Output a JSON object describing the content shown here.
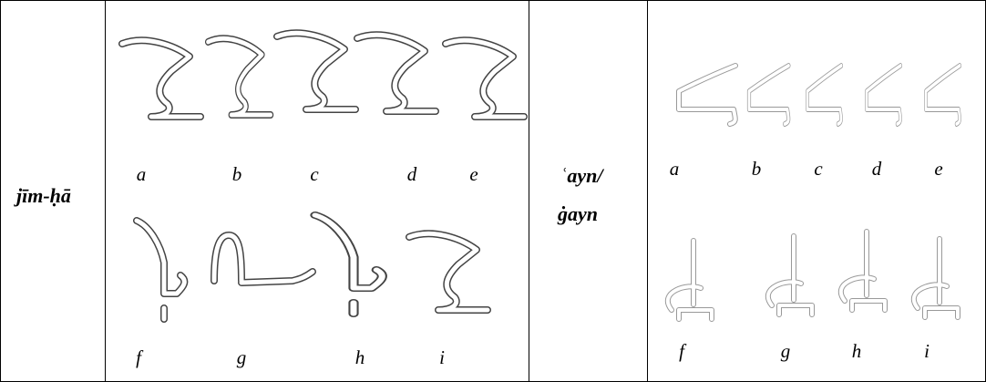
{
  "table": {
    "rows": [
      {
        "label": [
          "jīm-ḥā"
        ],
        "glyph_letters": [
          "a",
          "b",
          "c",
          "d",
          "e",
          "f",
          "g",
          "h",
          "i"
        ]
      },
      {
        "label": [
          "ʿayn/",
          "ġayn"
        ],
        "glyph_letters": [
          "a",
          "b",
          "c",
          "d",
          "e",
          "f",
          "g",
          "h",
          "i"
        ]
      }
    ]
  }
}
